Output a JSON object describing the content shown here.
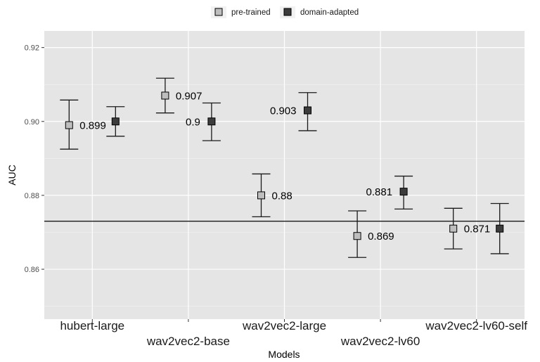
{
  "chart_data": {
    "type": "scatter",
    "subtype": "point-with-error-bars",
    "xlabel": "Models",
    "ylabel": "AUC",
    "categories": [
      "hubert-large",
      "wav2vec2-base",
      "wav2vec2-large",
      "wav2vec2-lv60",
      "wav2vec2-lv60-self"
    ],
    "ylim": [
      0.8465,
      0.9245
    ],
    "yticks": [
      0.86,
      0.88,
      0.9,
      0.92
    ],
    "ytick_labels": [
      "0.86",
      "0.88",
      "0.90",
      "0.92"
    ],
    "grid": true,
    "legend_position": "top",
    "reference_line": 0.873,
    "series": [
      {
        "name": "pre-trained",
        "color": "#bebebe",
        "values": [
          0.899,
          0.907,
          0.88,
          0.869,
          0.871
        ],
        "lower": [
          0.8925,
          0.9023,
          0.8742,
          0.8632,
          0.8655
        ],
        "upper": [
          0.9058,
          0.9117,
          0.8858,
          0.8758,
          0.8765
        ],
        "labels": [
          "0.899",
          "0.907",
          "0.88",
          "0.869",
          "0.871"
        ]
      },
      {
        "name": "domain-adapted",
        "color": "#3c3c3c",
        "values": [
          0.9,
          0.9,
          0.903,
          0.881,
          0.871
        ],
        "lower": [
          0.896,
          0.8948,
          0.8975,
          0.8763,
          0.8642
        ],
        "upper": [
          0.904,
          0.905,
          0.9078,
          0.8852,
          0.8778
        ],
        "labels": [
          "",
          "0.9",
          "0.903",
          "0.881",
          ""
        ]
      }
    ]
  }
}
